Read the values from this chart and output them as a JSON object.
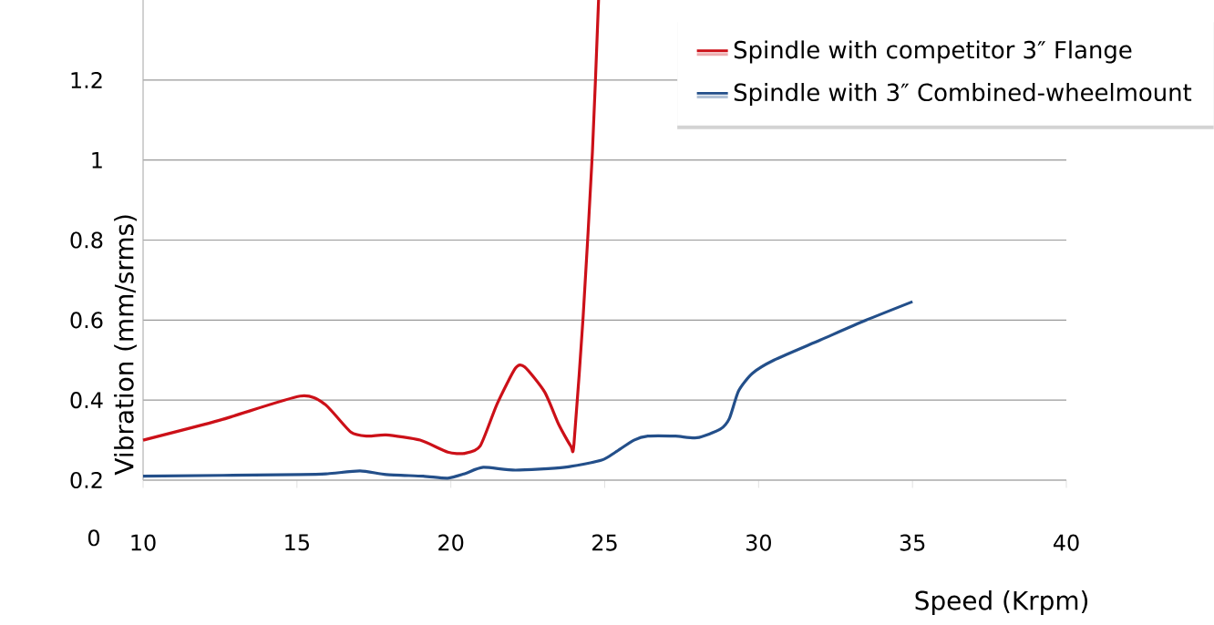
{
  "chart_data": {
    "type": "line",
    "xlabel": "Speed (Krpm)",
    "ylabel": "Vibration (mm/srms)",
    "xlim": [
      10,
      40
    ],
    "xticks": [
      10,
      15,
      20,
      25,
      30,
      35,
      40
    ],
    "ylim": [
      0.2,
      1.4
    ],
    "yticks": [
      0.2,
      0.4,
      0.6,
      0.8,
      1,
      1.2
    ],
    "grid": "y",
    "legend": "top right",
    "marker": "none",
    "line_style": "solid",
    "annotations": [
      "0"
    ],
    "series": [
      {
        "name": "Spindle with competitor 3″ Flange",
        "color": "#cc1018",
        "x": [
          10,
          12.5,
          15.1,
          15.9,
          16.75,
          17.3,
          17.9,
          19,
          19.9,
          20.45,
          20.95,
          21.5,
          22.1,
          22.4,
          23.05,
          23.5,
          23.9,
          24.0,
          24.3,
          24.6,
          24.8
        ],
        "values": [
          0.3,
          0.35,
          0.41,
          0.39,
          0.32,
          0.31,
          0.313,
          0.3,
          0.27,
          0.267,
          0.285,
          0.39,
          0.48,
          0.483,
          0.42,
          0.34,
          0.285,
          0.29,
          0.61,
          1.02,
          1.4
        ]
      },
      {
        "name": "Spindle with 3″ Combined-wheelmount",
        "color": "#234f8a",
        "x": [
          10,
          15.1,
          16,
          17.05,
          17.9,
          19.1,
          19.9,
          20.45,
          21.05,
          22.1,
          23.7,
          24.9,
          25.35,
          25.95,
          26.4,
          27.3,
          28,
          28.75,
          29.05,
          29.35,
          29.8,
          30.5,
          32,
          33.5,
          35
        ],
        "values": [
          0.21,
          0.214,
          0.216,
          0.223,
          0.214,
          0.21,
          0.205,
          0.216,
          0.232,
          0.225,
          0.232,
          0.25,
          0.27,
          0.3,
          0.31,
          0.31,
          0.306,
          0.327,
          0.354,
          0.423,
          0.467,
          0.5,
          0.55,
          0.6,
          0.646
        ]
      }
    ]
  }
}
